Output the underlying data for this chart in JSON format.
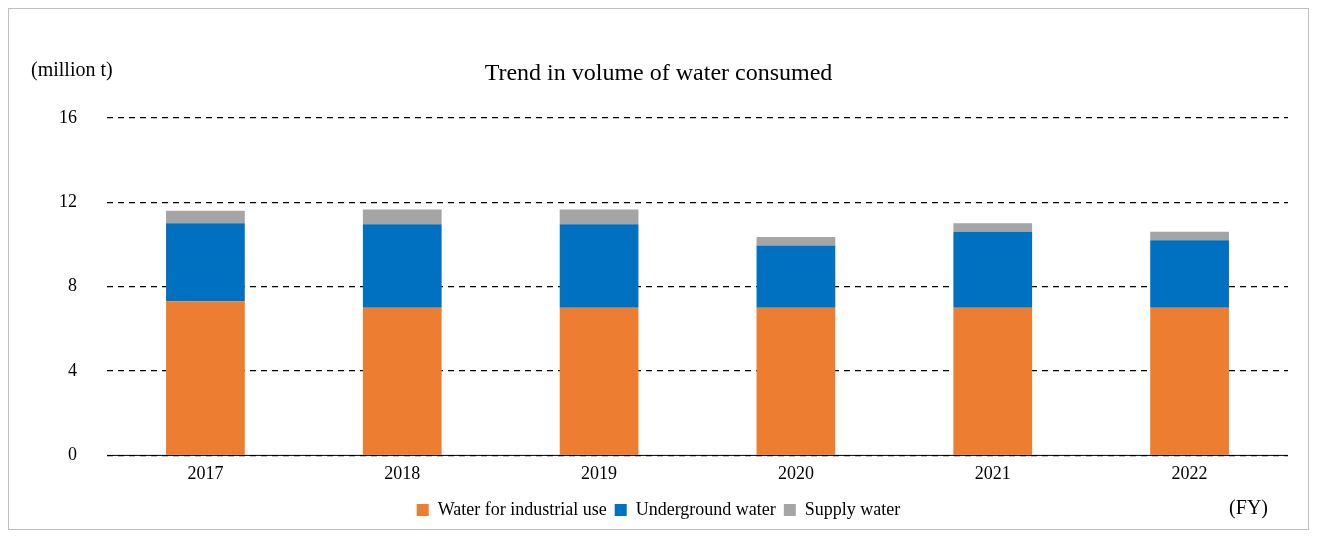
{
  "chart_data": {
    "type": "bar",
    "title": "Trend in volume of water consumed",
    "ylabel": "(million t)",
    "xlabel": "(FY)",
    "categories": [
      "2017",
      "2018",
      "2019",
      "2020",
      "2021",
      "2022"
    ],
    "series": [
      {
        "name": "Water for industrial use",
        "color": "#ed7d31",
        "values": [
          7.3,
          7.0,
          7.0,
          7.0,
          7.0,
          7.0
        ]
      },
      {
        "name": "Underground water",
        "color": "#0070c0",
        "values": [
          3.7,
          3.95,
          3.95,
          2.95,
          3.6,
          3.2
        ]
      },
      {
        "name": "Supply water",
        "color": "#a5a5a5",
        "values": [
          0.6,
          0.7,
          0.7,
          0.4,
          0.4,
          0.4
        ]
      }
    ],
    "stacked": true,
    "ylim": [
      0,
      16
    ],
    "yticks": [
      0,
      4,
      8,
      12,
      16
    ],
    "grid": "y",
    "legend": "bottom"
  }
}
